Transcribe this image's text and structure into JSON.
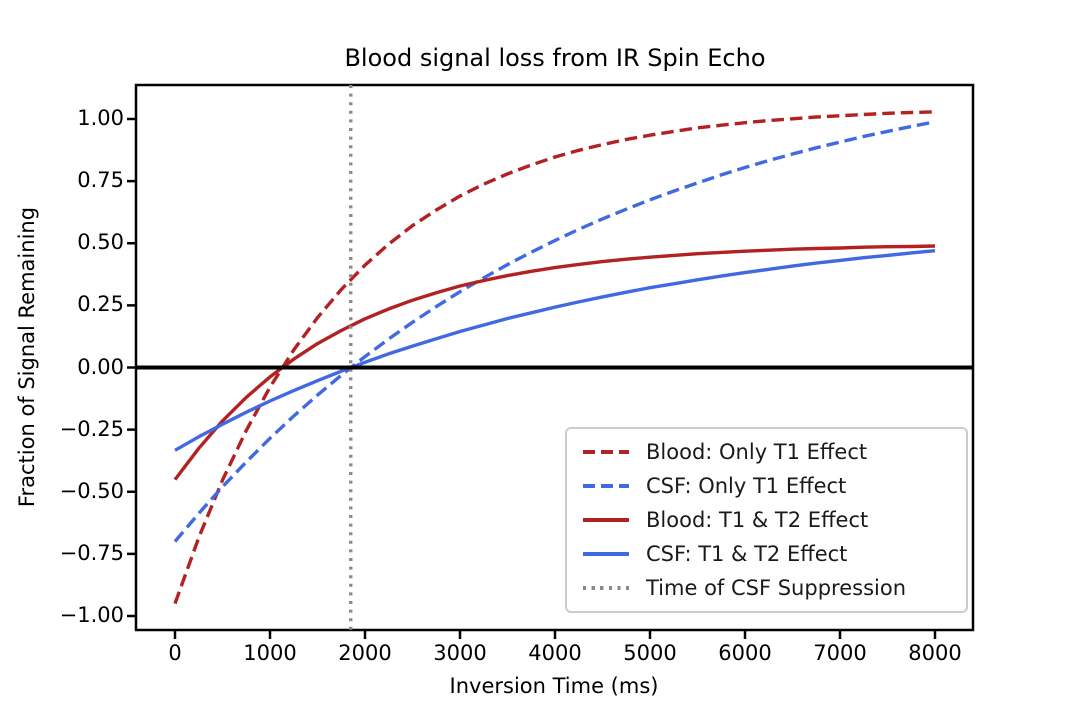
{
  "chart_data": {
    "type": "line",
    "title": "Blood signal loss from IR Spin Echo",
    "xlabel": "Inversion Time (ms)",
    "ylabel": "Fraction of Signal Remaining",
    "xlim": [
      -400,
      8400
    ],
    "ylim": [
      -1.05,
      1.14
    ],
    "grid": false,
    "legend_position": "lower right",
    "x_ticks": [
      0,
      1000,
      2000,
      3000,
      4000,
      5000,
      6000,
      7000,
      8000
    ],
    "y_tick_values": [
      1.0,
      0.75,
      0.5,
      0.25,
      0.0,
      -0.25,
      -0.5,
      -0.75,
      -1.0
    ],
    "y_tick_labels": [
      "1.00",
      "0.75",
      "0.50",
      "0.25",
      "0.00",
      "−0.25",
      "−0.50",
      "−0.75",
      "−1.00"
    ],
    "zero_line": true,
    "suppression_time_ms": 1850,
    "x": [
      0,
      250,
      500,
      750,
      1000,
      1250,
      1500,
      1750,
      2000,
      2250,
      2500,
      2750,
      3000,
      3250,
      3500,
      3750,
      4000,
      4250,
      4500,
      4750,
      5000,
      5250,
      5500,
      5750,
      6000,
      6250,
      6500,
      6750,
      7000,
      7250,
      7500,
      7750,
      8000
    ],
    "series": [
      {
        "name": "Blood: Only T1 Effect",
        "color": "#b22222",
        "style": "dashed",
        "values": [
          -0.95,
          -0.684,
          -0.453,
          -0.253,
          -0.079,
          0.071,
          0.201,
          0.314,
          0.412,
          0.497,
          0.571,
          0.634,
          0.69,
          0.738,
          0.779,
          0.815,
          0.847,
          0.874,
          0.897,
          0.918,
          0.935,
          0.95,
          0.964,
          0.975,
          0.985,
          0.994,
          1.001,
          1.008,
          1.013,
          1.018,
          1.023,
          1.026,
          1.029
        ]
      },
      {
        "name": "CSF: Only T1 Effect",
        "color": "#4169e1",
        "style": "dashed",
        "values": [
          -0.7,
          -0.587,
          -0.48,
          -0.38,
          -0.285,
          -0.195,
          -0.111,
          -0.031,
          0.044,
          0.115,
          0.182,
          0.245,
          0.305,
          0.361,
          0.414,
          0.464,
          0.511,
          0.556,
          0.598,
          0.637,
          0.675,
          0.71,
          0.743,
          0.775,
          0.805,
          0.833,
          0.859,
          0.884,
          0.907,
          0.93,
          0.95,
          0.97,
          0.989
        ]
      },
      {
        "name": "Blood: T1 & T2 Effect",
        "color": "#b22222",
        "style": "solid",
        "values": [
          -0.451,
          -0.325,
          -0.215,
          -0.12,
          -0.038,
          0.034,
          0.096,
          0.149,
          0.196,
          0.236,
          0.271,
          0.301,
          0.328,
          0.35,
          0.37,
          0.387,
          0.402,
          0.415,
          0.426,
          0.436,
          0.444,
          0.451,
          0.458,
          0.463,
          0.468,
          0.472,
          0.476,
          0.479,
          0.481,
          0.484,
          0.486,
          0.487,
          0.489
        ]
      },
      {
        "name": "CSF: T1 & T2 Effect",
        "color": "#4169e1",
        "style": "solid",
        "values": [
          -0.333,
          -0.279,
          -0.228,
          -0.18,
          -0.135,
          -0.093,
          -0.053,
          -0.015,
          0.021,
          0.055,
          0.086,
          0.116,
          0.145,
          0.171,
          0.197,
          0.22,
          0.243,
          0.264,
          0.284,
          0.303,
          0.321,
          0.337,
          0.353,
          0.368,
          0.382,
          0.395,
          0.408,
          0.42,
          0.431,
          0.442,
          0.451,
          0.461,
          0.47
        ]
      }
    ]
  },
  "legend": {
    "items": [
      {
        "label": "Blood: Only T1 Effect",
        "color": "#b22222",
        "style": "dashed"
      },
      {
        "label": "CSF: Only T1 Effect",
        "color": "#4169e1",
        "style": "dashed"
      },
      {
        "label": "Blood: T1 & T2 Effect",
        "color": "#b22222",
        "style": "solid"
      },
      {
        "label": "CSF: T1 & T2 Effect",
        "color": "#4169e1",
        "style": "solid"
      },
      {
        "label": "Time of CSF Suppression",
        "color": "#8a8a8a",
        "style": "dotted"
      }
    ]
  },
  "colors": {
    "blood": "#b22222",
    "csf": "#4169e1",
    "suppression_line": "#8a8a8a",
    "zero_line": "#000000",
    "spine": "#000000",
    "legend_border": "#cbcbcb"
  }
}
